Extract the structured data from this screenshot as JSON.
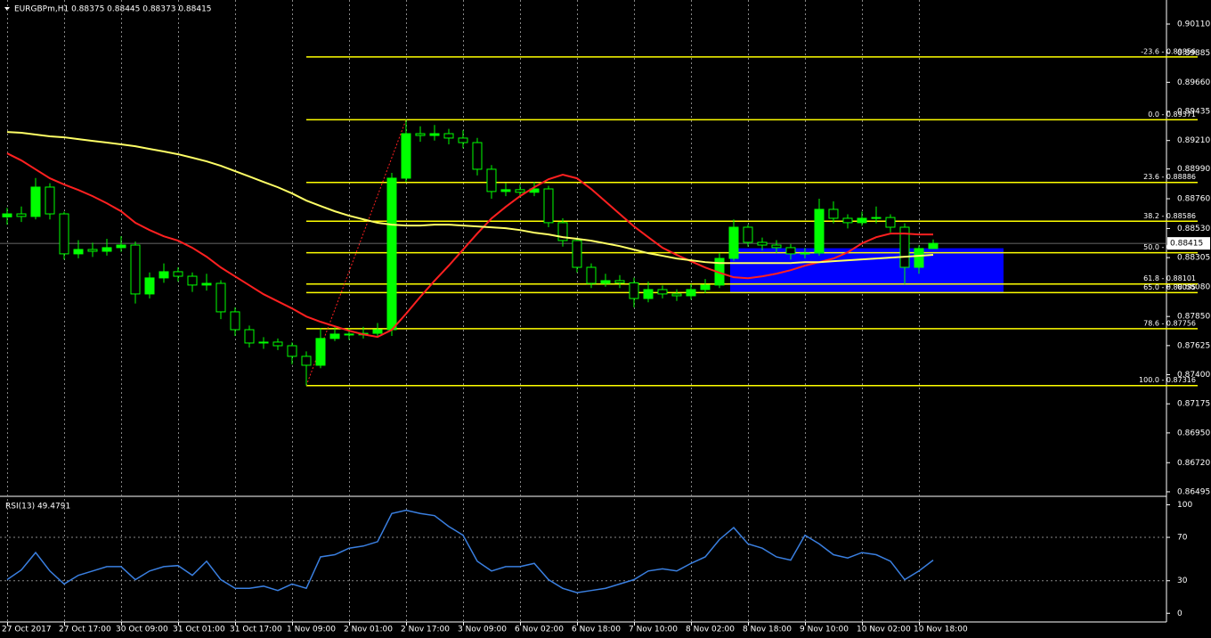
{
  "chart_data": [
    {
      "type": "candlestick",
      "title": "EURGBPm,H1 0.88375 0.88445 0.88373 0.88415",
      "categories": [
        "27 Oct 2017",
        null,
        null,
        null,
        "27 Oct 17:00",
        null,
        null,
        null,
        "30 Oct 09:00",
        null,
        null,
        null,
        "31 Oct 01:00",
        null,
        null,
        null,
        "31 Oct 17:00",
        null,
        null,
        null,
        "1 Nov 09:00",
        null,
        null,
        null,
        "2 Nov 01:00",
        null,
        null,
        null,
        "2 Nov 17:00",
        null,
        null,
        null,
        "3 Nov 09:00",
        null,
        null,
        null,
        "6 Nov 02:00",
        null,
        null,
        null,
        "6 Nov 18:00",
        null,
        null,
        null,
        "7 Nov 10:00",
        null,
        null,
        null,
        "8 Nov 02:00",
        null,
        null,
        null,
        "8 Nov 18:00",
        null,
        null,
        null,
        "9 Nov 10:00",
        null,
        null,
        null,
        "10 Nov 02:00",
        null,
        null,
        null,
        "10 Nov 18:00",
        null
      ],
      "open": [
        0.8862,
        0.88643,
        0.88623,
        0.8885,
        0.88643,
        0.88334,
        0.88368,
        0.88354,
        0.88382,
        0.88402,
        0.88024,
        0.88148,
        0.88196,
        0.88161,
        0.88093,
        0.88106,
        0.87886,
        0.87748,
        0.87645,
        0.87652,
        0.87624,
        0.87542,
        0.87473,
        0.8768,
        0.87714,
        0.87708,
        0.8772,
        0.87748,
        0.88919,
        0.89263,
        0.89249,
        0.89263,
        0.89229,
        0.89194,
        0.88988,
        0.88816,
        0.8883,
        0.8881,
        0.88836,
        0.88575,
        0.88437,
        0.8823,
        0.88106,
        0.88127,
        0.8811,
        0.87989,
        0.88058,
        0.88024,
        0.8801,
        0.88058,
        0.88093,
        0.88299,
        0.8854,
        0.88423,
        0.88402,
        0.88382,
        0.88334,
        0.8834,
        0.88678,
        0.88609,
        0.88575,
        0.88609,
        0.88615,
        0.8854,
        0.8823,
        0.88375
      ],
      "high": [
        0.8869,
        0.887,
        0.8892,
        0.8888,
        0.8866,
        0.8844,
        0.8842,
        0.8845,
        0.8847,
        0.8843,
        0.8819,
        0.8826,
        0.8823,
        0.8819,
        0.8818,
        0.8813,
        0.8792,
        0.8778,
        0.8769,
        0.8768,
        0.8765,
        0.8758,
        0.8776,
        0.8777,
        0.8776,
        0.8777,
        0.878,
        0.8896,
        0.89371,
        0.8932,
        0.8933,
        0.893,
        0.8929,
        0.8923,
        0.8902,
        0.8888,
        0.8887,
        0.8889,
        0.8886,
        0.8861,
        0.8846,
        0.8826,
        0.8818,
        0.8817,
        0.8815,
        0.8812,
        0.8809,
        0.8806,
        0.881,
        0.8814,
        0.8834,
        0.886,
        0.8856,
        0.8846,
        0.8844,
        0.8841,
        0.8838,
        0.8876,
        0.8874,
        0.8864,
        0.8866,
        0.887,
        0.8864,
        0.8857,
        0.884,
        0.88445
      ],
      "low": [
        0.8856,
        0.8858,
        0.886,
        0.886,
        0.8829,
        0.883,
        0.8831,
        0.8832,
        0.8835,
        0.8795,
        0.8799,
        0.8811,
        0.8812,
        0.8804,
        0.8805,
        0.8783,
        0.877,
        0.8761,
        0.876,
        0.8759,
        0.8748,
        0.87316,
        0.8745,
        0.8766,
        0.8767,
        0.8768,
        0.8769,
        0.877,
        0.8889,
        0.892,
        0.8921,
        0.8918,
        0.8915,
        0.8894,
        0.8876,
        0.8878,
        0.8877,
        0.8878,
        0.8854,
        0.8839,
        0.8819,
        0.8807,
        0.8808,
        0.8807,
        0.8792,
        0.8796,
        0.8799,
        0.8797,
        0.8798,
        0.8803,
        0.8807,
        0.8828,
        0.8839,
        0.8836,
        0.8834,
        0.8829,
        0.883,
        0.8832,
        0.8857,
        0.8853,
        0.8855,
        0.8857,
        0.885,
        0.881,
        0.8818,
        0.88373
      ],
      "close": [
        0.88643,
        0.88623,
        0.8885,
        0.88643,
        0.88334,
        0.88368,
        0.88354,
        0.88382,
        0.88402,
        0.88024,
        0.88148,
        0.88196,
        0.88161,
        0.88093,
        0.88106,
        0.87886,
        0.87748,
        0.87645,
        0.87652,
        0.87624,
        0.87542,
        0.87473,
        0.8768,
        0.87714,
        0.87708,
        0.8772,
        0.87748,
        0.88919,
        0.89263,
        0.89249,
        0.89263,
        0.89229,
        0.89194,
        0.88988,
        0.88816,
        0.8883,
        0.8881,
        0.88836,
        0.88575,
        0.88437,
        0.8823,
        0.88106,
        0.88127,
        0.8811,
        0.87989,
        0.88058,
        0.88024,
        0.8801,
        0.88058,
        0.88093,
        0.88299,
        0.8854,
        0.88423,
        0.88402,
        0.88382,
        0.88334,
        0.8834,
        0.88678,
        0.88609,
        0.88575,
        0.88609,
        0.88615,
        0.8854,
        0.8823,
        0.88375,
        0.88415
      ],
      "up_color": "#00ff00",
      "down_color": "#000000",
      "wick_color": "#00ff00",
      "series": [
        {
          "color": "#ff2020",
          "values": [
            0.89111,
            0.89056,
            0.88987,
            0.88918,
            0.8887,
            0.88828,
            0.8878,
            0.88725,
            0.88663,
            0.88574,
            0.88518,
            0.8847,
            0.88436,
            0.88381,
            0.88312,
            0.88229,
            0.8816,
            0.88091,
            0.88022,
            0.87967,
            0.87912,
            0.8785,
            0.87809,
            0.87774,
            0.8774,
            0.87712,
            0.87692,
            0.87747,
            0.87871,
            0.88002,
            0.88126,
            0.88243,
            0.88367,
            0.88491,
            0.88608,
            0.88698,
            0.8878,
            0.88849,
            0.88911,
            0.88946,
            0.88918,
            0.88835,
            0.88739,
            0.88642,
            0.88546,
            0.88463,
            0.88381,
            0.88326,
            0.88277,
            0.88229,
            0.88188,
            0.88153,
            0.88146,
            0.8816,
            0.88181,
            0.88208,
            0.88243,
            0.8827,
            0.88298,
            0.88346,
            0.88415,
            0.88463,
            0.88491,
            0.88491,
            0.88484,
            0.88484
          ]
        },
        {
          "color": "#ffff66",
          "values": [
            0.89276,
            0.8927,
            0.89256,
            0.89242,
            0.89235,
            0.89221,
            0.89207,
            0.89194,
            0.8918,
            0.89166,
            0.89145,
            0.89125,
            0.89104,
            0.89077,
            0.89049,
            0.89015,
            0.88973,
            0.88932,
            0.8889,
            0.88849,
            0.88801,
            0.88746,
            0.88704,
            0.88663,
            0.88629,
            0.88601,
            0.88574,
            0.8856,
            0.88553,
            0.88553,
            0.8856,
            0.8856,
            0.88553,
            0.88546,
            0.88539,
            0.88532,
            0.88518,
            0.88498,
            0.88484,
            0.88463,
            0.8845,
            0.88436,
            0.88415,
            0.88394,
            0.88367,
            0.88339,
            0.88319,
            0.88298,
            0.88284,
            0.8827,
            0.88263,
            0.88263,
            0.88263,
            0.88263,
            0.88263,
            0.88263,
            0.8827,
            0.8827,
            0.88277,
            0.88284,
            0.88291,
            0.88298,
            0.88305,
            0.88312,
            0.88319,
            0.88326
          ]
        }
      ],
      "fib_color": "#ffff00",
      "zone_color": "#0000ff",
      "fib_levels": [
        {
          "value": 0.89856,
          "label": "-23.6 - 0.89856"
        },
        {
          "value": 0.89371,
          "label": "0.0 - 0.89371"
        },
        {
          "value": 0.88886,
          "label": "23.6 - 0.88886"
        },
        {
          "value": 0.88586,
          "label": "38.2 - 0.88586"
        },
        {
          "value": 0.88343,
          "label": "50.0 - 0.88343"
        },
        {
          "value": 0.88101,
          "label": "61.8 - 0.88101"
        },
        {
          "value": 0.88035,
          "label": "65.0 - 0.88035"
        },
        {
          "value": 0.87756,
          "label": "78.6 - 0.87756"
        },
        {
          "value": 0.87316,
          "label": "100.0 - 0.87316"
        }
      ],
      "current_price": 0.88415,
      "ylim": [
        0.86467,
        0.90296
      ],
      "yticks": [
        {
          "value": 0.9011,
          "label": "0.90110"
        },
        0.89885,
        {
          "value": 0.8966,
          "label": "0.89660"
        },
        0.89435,
        {
          "value": 0.8921,
          "label": "0.89210"
        },
        {
          "value": 0.8899,
          "label": "0.88990"
        },
        {
          "value": 0.8876,
          "label": "0.88760"
        },
        {
          "value": 0.8853,
          "label": "0.88530"
        },
        0.88305,
        {
          "value": 0.8808,
          "label": "0.88080"
        },
        {
          "value": 0.8785,
          "label": "0.87850"
        },
        0.87625,
        {
          "value": 0.874,
          "label": "0.87400"
        },
        0.87175,
        {
          "value": 0.8695,
          "label": "0.86950"
        },
        {
          "value": 0.8672,
          "label": "0.86720"
        },
        0.86495
      ]
    },
    {
      "type": "line",
      "title": "RSI(13) 49.4791",
      "series": [
        {
          "color": "#3a7fe0",
          "values": [
            31,
            40,
            56,
            39,
            27,
            35,
            39,
            43,
            43,
            31,
            39,
            43,
            44,
            35,
            48,
            31,
            23,
            23,
            25,
            21,
            27,
            23,
            52,
            54,
            60,
            62,
            66,
            92,
            95,
            92,
            90,
            80,
            72,
            48,
            39,
            43,
            43,
            46,
            31,
            23,
            19,
            21,
            23,
            27,
            31,
            39,
            41,
            39,
            46,
            52,
            68,
            79,
            64,
            60,
            52,
            49,
            72,
            64,
            54,
            51,
            56,
            54,
            48,
            31,
            39,
            49
          ]
        }
      ],
      "ylim": [
        -8,
        107
      ],
      "yticks": [
        100,
        70,
        30,
        0
      ]
    }
  ]
}
